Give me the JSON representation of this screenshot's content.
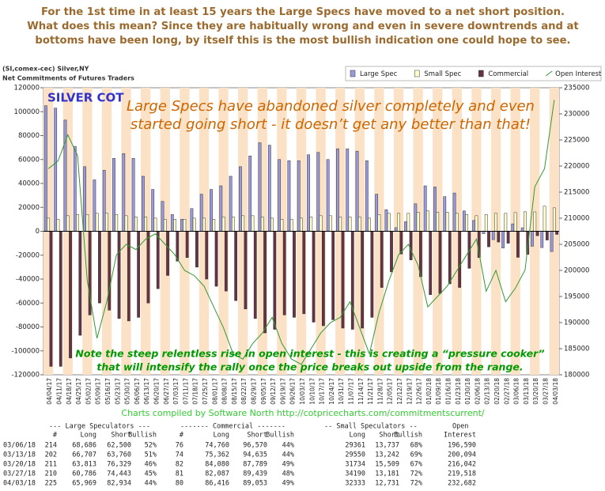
{
  "header": {
    "lines": [
      "For the 1st time in at least 15 years the Large Specs have moved to a net short position.",
      "What does this mean? Since they are habitually wrong and even in severe downtrends and at",
      "bottoms have been long, by itself this is the most bullish indication one could hope to see."
    ]
  },
  "chart_data": {
    "type": "bar",
    "source": "(SI,comex-cec) Silver,NY",
    "title": "Net Commitments of Futures Traders",
    "annotations": [
      "SILVER COT",
      "Large Specs have abandoned silver completely and even",
      "started going short - it doesn’t get any better than that!",
      "Note the steep relentless rise in open interest - this is creating a “pressure cooker”",
      "that will intensify the rally once the price breaks out upside from the range."
    ],
    "categories": [
      "04/04/17",
      "04/11/17",
      "04/18/17",
      "04/25/17",
      "05/02/17",
      "05/09/17",
      "05/16/17",
      "05/23/17",
      "05/30/17",
      "06/06/17",
      "06/13/17",
      "06/20/17",
      "06/27/17",
      "07/03/17",
      "07/11/17",
      "07/18/17",
      "07/25/17",
      "08/01/17",
      "08/08/17",
      "08/15/17",
      "08/22/17",
      "08/29/17",
      "09/05/17",
      "09/12/17",
      "09/19/17",
      "09/26/17",
      "10/03/17",
      "10/10/17",
      "10/17/17",
      "10/24/17",
      "10/31/17",
      "11/07/17",
      "11/14/17",
      "11/21/17",
      "11/28/17",
      "12/05/17",
      "12/12/17",
      "12/19/17",
      "12/26/17",
      "01/02/18",
      "01/09/18",
      "01/16/18",
      "01/23/18",
      "01/30/18",
      "02/06/18",
      "02/13/18",
      "02/20/18",
      "02/27/18",
      "03/06/18",
      "03/13/18",
      "03/20/18",
      "03/27/18",
      "04/03/18"
    ],
    "series": [
      {
        "name": "Large Spec",
        "color": "#9999dd",
        "values": [
          105000,
          103000,
          93000,
          71000,
          54000,
          43000,
          51000,
          61000,
          65000,
          61000,
          46000,
          35000,
          25000,
          14000,
          10000,
          19000,
          31000,
          35000,
          38000,
          46000,
          54000,
          63000,
          74000,
          72000,
          60000,
          59000,
          59000,
          64000,
          66000,
          60000,
          69000,
          69000,
          67000,
          59000,
          31000,
          18000,
          3000,
          8000,
          23000,
          38000,
          37000,
          29000,
          32000,
          17000,
          9000,
          -2000,
          -7000,
          -14000,
          6186,
          2947,
          -12516,
          -13657,
          -16965
        ]
      },
      {
        "name": "Small Spec",
        "color": "#ffffcc",
        "values": [
          11000,
          10000,
          13000,
          14000,
          14000,
          15000,
          15000,
          14000,
          13000,
          12000,
          12000,
          11000,
          10000,
          10000,
          10000,
          11000,
          11000,
          10000,
          12000,
          12000,
          13000,
          13000,
          12000,
          11000,
          10000,
          10000,
          11000,
          12000,
          13000,
          13000,
          12000,
          12000,
          12000,
          11000,
          14000,
          15000,
          15000,
          15000,
          16000,
          17000,
          16000,
          16000,
          15000,
          14000,
          13000,
          14000,
          15000,
          15000,
          15624,
          16308,
          16225,
          21009,
          19602
        ]
      },
      {
        "name": "Commercial",
        "color": "#663344",
        "values": [
          -113000,
          -113000,
          -106000,
          -87000,
          -70000,
          -60000,
          -66000,
          -73000,
          -75000,
          -72000,
          -60000,
          -48000,
          -37000,
          -25000,
          -22000,
          -30000,
          -40000,
          -46000,
          -50000,
          -58000,
          -65000,
          -73000,
          -85000,
          -82000,
          -70000,
          -72000,
          -69000,
          -76000,
          -79000,
          -74000,
          -81000,
          -82000,
          -81000,
          -72000,
          -47000,
          -34000,
          -19000,
          -24000,
          -38000,
          -53000,
          -52000,
          -44000,
          -47000,
          -31000,
          -22000,
          -13000,
          -9000,
          -10000,
          -21810,
          -19273,
          -3709,
          -7352,
          -2637
        ]
      },
      {
        "name": "Open Interest",
        "color": "#339933",
        "type": "line",
        "axis": "y2",
        "values": [
          219500,
          221000,
          226000,
          222000,
          198000,
          187000,
          194000,
          203000,
          205000,
          204000,
          206000,
          207000,
          205000,
          203000,
          200000,
          199000,
          197000,
          193000,
          189000,
          184000,
          183000,
          186000,
          188000,
          191000,
          186000,
          183000,
          182000,
          185000,
          188000,
          190000,
          191000,
          194000,
          189000,
          184000,
          192000,
          198000,
          203000,
          205000,
          201000,
          193000,
          195000,
          197000,
          200000,
          203000,
          206000,
          196000,
          200000,
          194000,
          196590,
          200094,
          216042,
          219518,
          232682
        ]
      }
    ],
    "ylim": [
      -120000,
      120000
    ],
    "yticks": [
      -120000,
      -100000,
      -80000,
      -60000,
      -40000,
      -20000,
      0,
      20000,
      40000,
      60000,
      80000,
      100000,
      120000
    ],
    "y2lim": [
      180000,
      235000
    ],
    "y2ticks": [
      180000,
      185000,
      190000,
      195000,
      200000,
      205000,
      210000,
      215000,
      220000,
      225000,
      230000,
      235000
    ],
    "legend": "top-right",
    "credit": "Charts compiled by Software North  http://cotpricecharts.com/commitmentscurrent/"
  },
  "table": {
    "groups": [
      "--- Large Speculators ---",
      "------- Commercial -------",
      "-- Small Speculators --",
      "Open"
    ],
    "columns": [
      "#",
      "Long",
      "Short",
      "Bullish",
      "#",
      "Long",
      "Short",
      "Bullish",
      "Long",
      "Short",
      "Bullish",
      "Interest"
    ],
    "rows": [
      [
        "03/06/18",
        "214",
        "68,686",
        "62,500",
        "52%",
        "76",
        "74,760",
        "96,570",
        "44%",
        "29361",
        "13,737",
        "68%",
        "196,590"
      ],
      [
        "03/13/18",
        "202",
        "66,707",
        "63,760",
        "51%",
        "74",
        "75,362",
        "94,635",
        "44%",
        "29550",
        "13,242",
        "69%",
        "200,094"
      ],
      [
        "03/20/18",
        "211",
        "63,813",
        "76,329",
        "46%",
        "82",
        "84,080",
        "87,789",
        "49%",
        "31734",
        "15,509",
        "67%",
        "216,042"
      ],
      [
        "03/27/18",
        "210",
        "60,786",
        "74,443",
        "45%",
        "81",
        "82,087",
        "89,439",
        "48%",
        "34190",
        "13,181",
        "72%",
        "219,518"
      ],
      [
        "04/03/18",
        "225",
        "65,969",
        "82,934",
        "44%",
        "80",
        "86,416",
        "89,053",
        "49%",
        "32333",
        "12,731",
        "72%",
        "232,682"
      ]
    ]
  }
}
